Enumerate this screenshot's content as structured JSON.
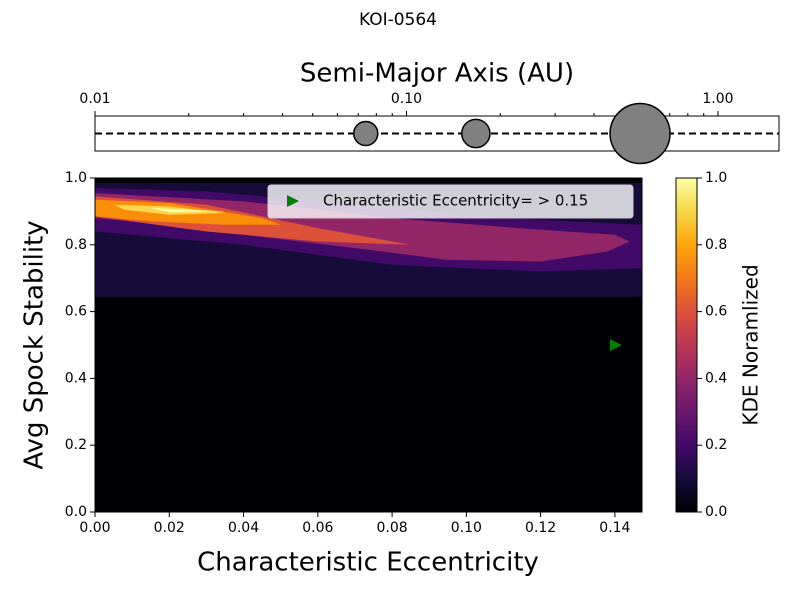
{
  "title": "KOI-0564",
  "chart_data": [
    {
      "type": "scatter",
      "title": "Semi-Major Axis (AU)",
      "log_x": true,
      "xlim": [
        0.01,
        1.57
      ],
      "xticks": [
        {
          "value": 0.01,
          "label": "0.01"
        },
        {
          "value": 0.1,
          "label": "0.10"
        },
        {
          "value": 1,
          "label": "1.00"
        }
      ],
      "ylim": [
        -1,
        1
      ],
      "x": [
        0.074,
        0.167,
        0.562
      ],
      "values": [
        0,
        0,
        0
      ],
      "sizes": [
        0.4,
        0.47,
        1.0
      ],
      "color": "#808080"
    },
    {
      "type": "contour",
      "xlabel": "Characteristic Eccentricity",
      "ylabel": "Avg Spock Stability",
      "xlim": [
        0,
        0.1473
      ],
      "ylim": [
        0,
        1
      ],
      "xticks": [
        {
          "value": 0,
          "label": "0.00"
        },
        {
          "value": 0.02,
          "label": "0.02"
        },
        {
          "value": 0.04,
          "label": "0.04"
        },
        {
          "value": 0.06,
          "label": "0.06"
        },
        {
          "value": 0.08,
          "label": "0.08"
        },
        {
          "value": 0.1,
          "label": "0.10"
        },
        {
          "value": 0.12,
          "label": "0.12"
        },
        {
          "value": 0.14,
          "label": "0.14"
        }
      ],
      "yticks": [
        {
          "value": 0,
          "label": "0.0"
        },
        0.2,
        0.4,
        0.6,
        0.8,
        {
          "value": 1,
          "label": "1.0"
        }
      ],
      "background": "#000004",
      "contours": [
        {
          "level": 0.05,
          "color": "#160b39",
          "points": [
            [
              0,
              0.644
            ],
            [
              0.1473,
              0.644
            ],
            [
              0.1473,
              0.985
            ],
            [
              0,
              0.985
            ]
          ]
        },
        {
          "level": 0.2,
          "color": "#420a68",
          "points": [
            [
              0,
              0.97
            ],
            [
              0.03,
              0.96
            ],
            [
              0.07,
              0.92
            ],
            [
              0.11,
              0.88
            ],
            [
              0.1473,
              0.86
            ],
            [
              0.1473,
              0.73
            ],
            [
              0.12,
              0.72
            ],
            [
              0.08,
              0.74
            ],
            [
              0.04,
              0.8
            ],
            [
              0,
              0.84
            ]
          ]
        },
        {
          "level": 0.4,
          "color": "#932667",
          "points": [
            [
              0,
              0.955
            ],
            [
              0.04,
              0.93
            ],
            [
              0.08,
              0.88
            ],
            [
              0.12,
              0.845
            ],
            [
              0.14,
              0.83
            ],
            [
              0.144,
              0.81
            ],
            [
              0.138,
              0.78
            ],
            [
              0.12,
              0.75
            ],
            [
              0.095,
              0.755
            ],
            [
              0.07,
              0.79
            ],
            [
              0.04,
              0.83
            ],
            [
              0.02,
              0.86
            ],
            [
              0,
              0.88
            ]
          ]
        },
        {
          "level": 0.6,
          "color": "#dd513a",
          "points": [
            [
              0,
              0.945
            ],
            [
              0.03,
              0.92
            ],
            [
              0.06,
              0.85
            ],
            [
              0.085,
              0.8
            ],
            [
              0.06,
              0.81
            ],
            [
              0.03,
              0.84
            ],
            [
              0,
              0.885
            ]
          ]
        },
        {
          "level": 0.7,
          "color": "#f98e09",
          "points": [
            [
              0,
              0.935
            ],
            [
              0.02,
              0.925
            ],
            [
              0.045,
              0.88
            ],
            [
              0.05,
              0.86
            ],
            [
              0.035,
              0.86
            ],
            [
              0.015,
              0.87
            ],
            [
              0,
              0.885
            ]
          ]
        },
        {
          "level": 0.85,
          "color": "#fbd54e",
          "points": [
            [
              0.005,
              0.92
            ],
            [
              0.02,
              0.915
            ],
            [
              0.035,
              0.895
            ],
            [
              0.02,
              0.89
            ],
            [
              0.008,
              0.905
            ]
          ]
        },
        {
          "level": 0.95,
          "color": "#fcffa4",
          "points": [
            [
              0.015,
              0.91
            ],
            [
              0.035,
              0.9
            ],
            [
              0.02,
              0.897
            ]
          ]
        }
      ],
      "series": [
        {
          "name": "Characteristic Eccentricity= > 0.15",
          "color": "#008000",
          "x": [
            0.14
          ],
          "values": [
            0.5
          ]
        }
      ],
      "colorbar": {
        "label": "KDE Noramlized",
        "lim": [
          0,
          1
        ],
        "ticks": [
          {
            "value": 0,
            "label": "0.0"
          },
          0.2,
          0.4,
          0.6,
          0.8,
          {
            "value": 1,
            "label": "1.0"
          }
        ]
      }
    }
  ]
}
